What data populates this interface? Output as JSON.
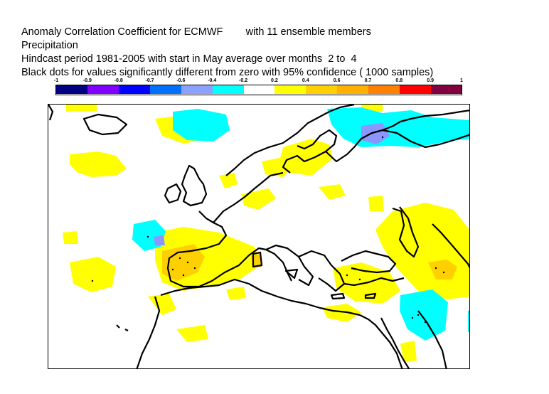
{
  "header": {
    "line1": "Anomaly Correlation Coefficient for ECMWF        with 11 ensemble members",
    "line2": "Precipitation",
    "line3": "Hindcast period 1981-2005 with start in May average over months  2 to  4",
    "line4": "Black dots for values significantly different from zero with 95% confidence ( 1000 samples)"
  },
  "colorbar": {
    "labels": [
      "-1",
      "-0.9",
      "-0.8",
      "-0.7",
      "-0.6",
      "-0.4",
      "-0.2",
      "0.2",
      "0.4",
      "0.6",
      "0.7",
      "0.8",
      "0.9",
      "1"
    ],
    "colors": [
      "#000080",
      "#8000ff",
      "#0000ff",
      "#0070ff",
      "#8ca0ff",
      "#00ffff",
      "#ffffff",
      "#ffff00",
      "#ffd000",
      "#ffb000",
      "#ff8000",
      "#ff0000",
      "#800040"
    ]
  },
  "map": {
    "colors": {
      "yellow": "#ffff00",
      "gold": "#ffd000",
      "cyan": "#00ffff",
      "periwinkle": "#8c96ff",
      "coast": "#000000"
    }
  }
}
